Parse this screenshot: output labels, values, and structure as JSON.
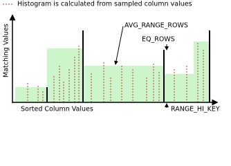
{
  "legend": "Histogram is calculated from sampled column values",
  "labels": {
    "avg_range_rows": "AVG_RANGE_ROWS",
    "eq_rows": "EQ_ROWS",
    "range_hi_key": "RANGE_HI_KEY"
  },
  "axes": {
    "y": "Matching Values",
    "x": "Sorted Column Values"
  }
}
